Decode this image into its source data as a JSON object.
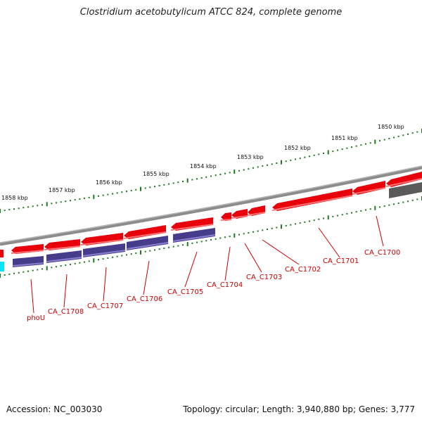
{
  "title": "Clostridium acetobutylicum ATCC 824, complete genome",
  "footer": {
    "accession": "Accession: NC_003030",
    "topology": "Topology: circular; Length: 3,940,880 bp; Genes: 3,777"
  },
  "kbp_labels": [
    "1850 kbp",
    "1851 kbp",
    "1852 kbp",
    "1853 kbp",
    "1854 kbp",
    "1855 kbp",
    "1856 kbp",
    "1857 kbp",
    "1858 kbp"
  ],
  "gene_labels": [
    "CA_C1700",
    "CA_C1701",
    "CA_C1702",
    "CA_C1703",
    "CA_C1704",
    "CA_C1705",
    "CA_C1706",
    "CA_C1707",
    "CA_C1708",
    "phoU"
  ],
  "colors": {
    "forward_gene": "#e8000b",
    "forward_gene_shadow": "#ff7373",
    "reverse_gene": "#473c8b",
    "reverse_gene_highlight": "#8b7fd0",
    "gray_gene": "#5a5a5a",
    "cyan_gene": "#00e5ff",
    "backbone": "#8c8c8c",
    "tick": "#1f7a1f",
    "label": "#cc0000"
  }
}
